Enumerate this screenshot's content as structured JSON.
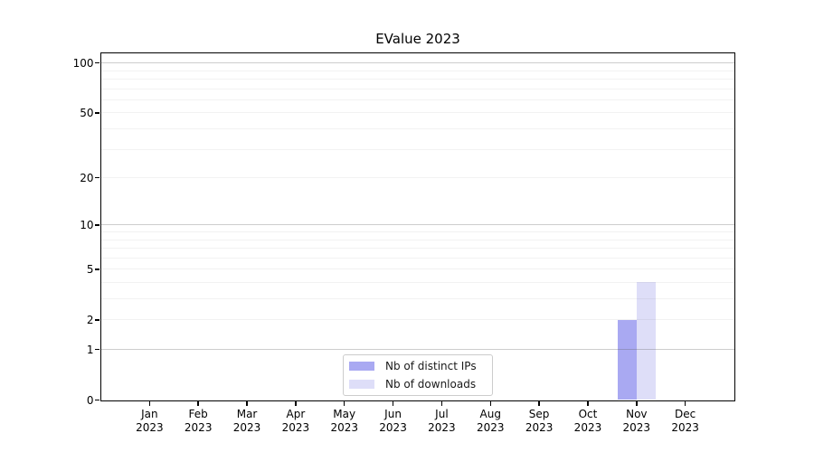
{
  "title": "EValue 2023",
  "legend": {
    "items": [
      {
        "label": "Nb of distinct IPs",
        "color": "#a9a9f2"
      },
      {
        "label": "Nb of downloads",
        "color": "#dedef8"
      }
    ]
  },
  "chart_data": {
    "type": "bar",
    "title": "EValue 2023",
    "categories": [
      "Jan 2023",
      "Feb 2023",
      "Mar 2023",
      "Apr 2023",
      "May 2023",
      "Jun 2023",
      "Jul 2023",
      "Aug 2023",
      "Sep 2023",
      "Oct 2023",
      "Nov 2023",
      "Dec 2023"
    ],
    "months": [
      "Jan",
      "Feb",
      "Mar",
      "Apr",
      "May",
      "Jun",
      "Jul",
      "Aug",
      "Sep",
      "Oct",
      "Nov",
      "Dec"
    ],
    "year_label": "2023",
    "series": [
      {
        "name": "Nb of distinct IPs",
        "color": "#a9a9f2",
        "values": [
          0,
          0,
          0,
          0,
          0,
          0,
          0,
          0,
          0,
          0,
          2,
          0
        ]
      },
      {
        "name": "Nb of downloads",
        "color": "#dedef8",
        "values": [
          0,
          0,
          0,
          0,
          0,
          0,
          0,
          0,
          0,
          0,
          4,
          0
        ]
      }
    ],
    "xlabel": "",
    "ylabel": "",
    "yscale": "log1p",
    "ylim": [
      0,
      115
    ],
    "y_tick_values": [
      0,
      1,
      2,
      5,
      10,
      20,
      50,
      100
    ],
    "y_major_gridlines": [
      1,
      10,
      100
    ],
    "y_minor_gridlines": [
      2,
      3,
      4,
      5,
      6,
      7,
      8,
      9,
      20,
      30,
      40,
      50,
      60,
      70,
      80,
      90
    ],
    "grid": true,
    "legend_position": "lower center",
    "colors": {
      "grid_major": "rgba(90,90,90,0.30)",
      "grid_minor": "rgba(90,90,90,0.08)",
      "axis": "#000000"
    }
  }
}
